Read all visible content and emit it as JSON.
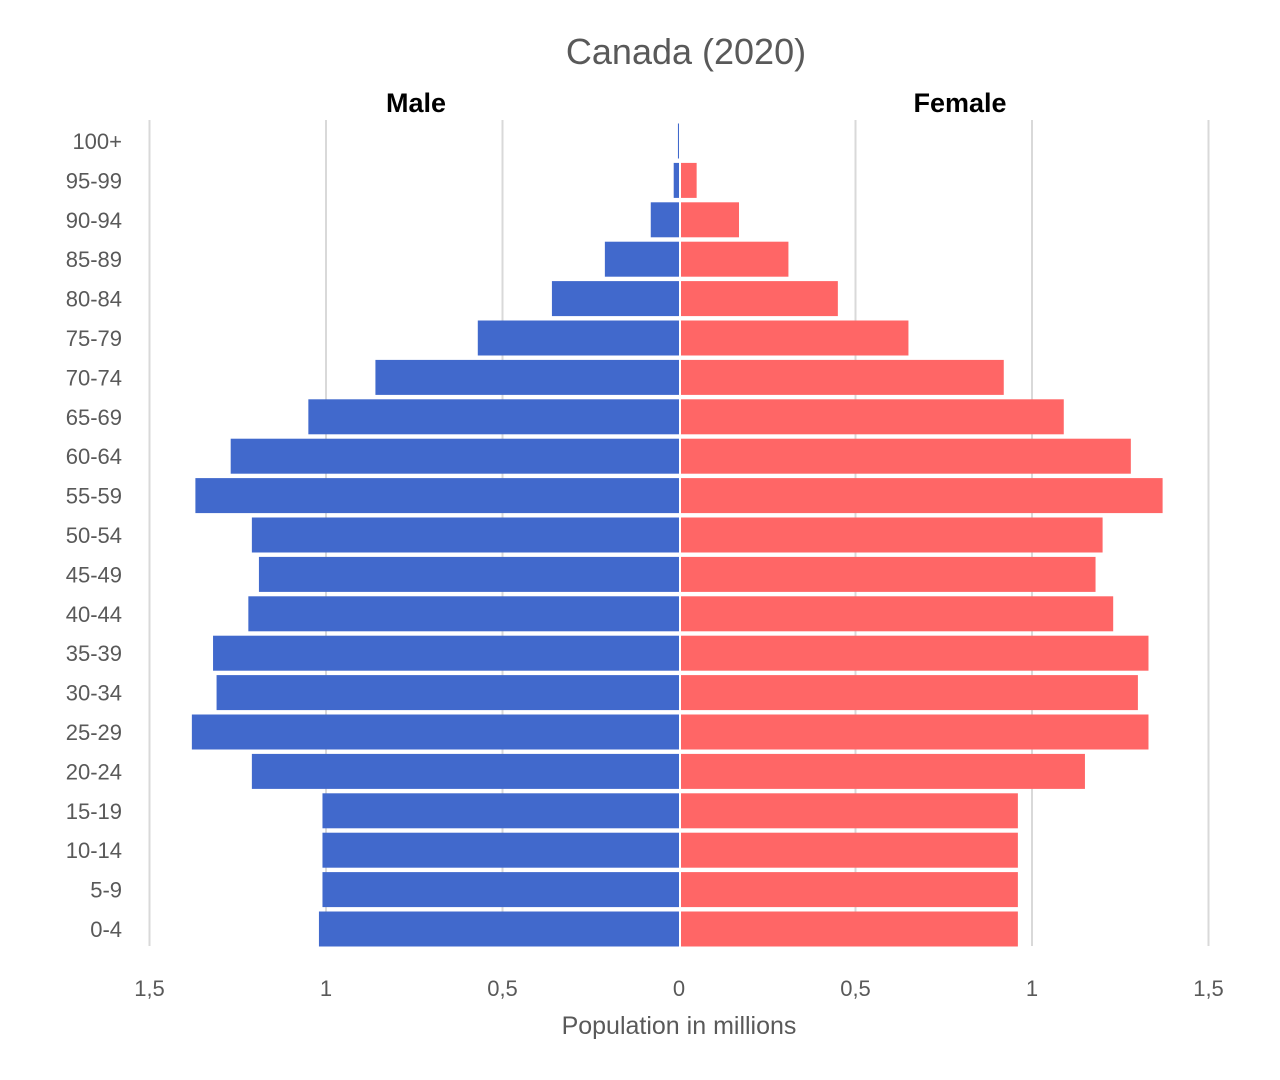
{
  "chart_data": {
    "type": "bar",
    "orientation": "horizontal",
    "layout": "population-pyramid",
    "title": "Canada (2020)",
    "xlabel": "Population in millions",
    "ylabel": "",
    "xlim": [
      -1.5,
      1.5
    ],
    "x_ticks": [
      {
        "value": -1.5,
        "label": "1,5"
      },
      {
        "value": -1.0,
        "label": "1"
      },
      {
        "value": -0.5,
        "label": "0,5"
      },
      {
        "value": 0,
        "label": "0"
      },
      {
        "value": 0.5,
        "label": "0,5"
      },
      {
        "value": 1.0,
        "label": "1"
      },
      {
        "value": 1.5,
        "label": "1,5"
      }
    ],
    "grid": true,
    "legend": "none",
    "side_labels": {
      "left": "Male",
      "right": "Female"
    },
    "categories": [
      "0-4",
      "5-9",
      "10-14",
      "15-19",
      "20-24",
      "25-29",
      "30-34",
      "35-39",
      "40-44",
      "45-49",
      "50-54",
      "55-59",
      "60-64",
      "65-69",
      "70-74",
      "75-79",
      "80-84",
      "85-89",
      "90-94",
      "95-99",
      "100+"
    ],
    "series": [
      {
        "name": "Male",
        "color": "#4169cc",
        "values": [
          1.02,
          1.01,
          1.01,
          1.01,
          1.21,
          1.38,
          1.31,
          1.32,
          1.22,
          1.19,
          1.21,
          1.37,
          1.27,
          1.05,
          0.86,
          0.57,
          0.36,
          0.21,
          0.08,
          0.015,
          0.003
        ]
      },
      {
        "name": "Female",
        "color": "#ff6666",
        "values": [
          0.96,
          0.96,
          0.96,
          0.96,
          1.15,
          1.33,
          1.3,
          1.33,
          1.23,
          1.18,
          1.2,
          1.37,
          1.28,
          1.09,
          0.92,
          0.65,
          0.45,
          0.31,
          0.17,
          0.05,
          0.003
        ]
      }
    ]
  }
}
